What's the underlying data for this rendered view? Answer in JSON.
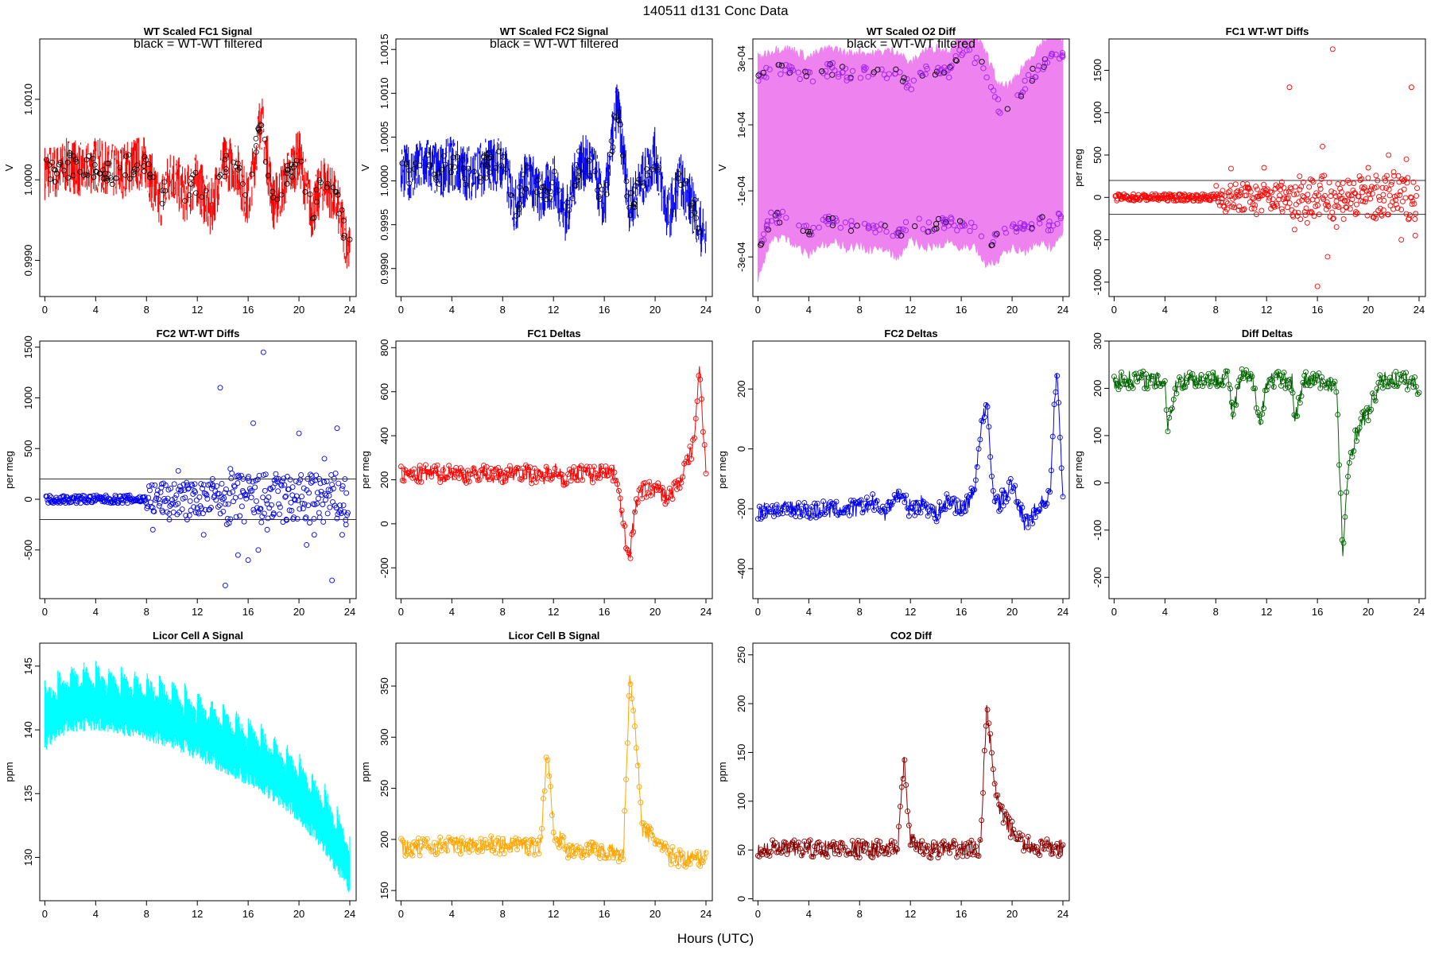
{
  "figure": {
    "title": "140511    d131    Conc Data",
    "xlabel": "Hours (UTC)"
  },
  "chart_data": [
    {
      "type": "line",
      "title": "WT Scaled FC1 Signal",
      "annotation": "black = WT-WT filtered",
      "ylabel": "V",
      "xlim": [
        -0.4,
        24.5
      ],
      "ylim": [
        0.99855,
        1.00175
      ],
      "xticks": [
        0,
        4,
        8,
        12,
        16,
        20,
        24
      ],
      "yticks": [
        0.999,
        1.0,
        1.001
      ],
      "ytick_labels": [
        "0.9990",
        "1.0000",
        "1.0010"
      ],
      "color": "#ff0000",
      "style": "band-points",
      "series": [
        {
          "name": "",
          "x": [
            0,
            1,
            2,
            3,
            4,
            5,
            6,
            7,
            8,
            9,
            10,
            11,
            12,
            13,
            14,
            15,
            16,
            17,
            18,
            19,
            20,
            21,
            22,
            23,
            24
          ],
          "y": [
            1.0001,
            1.0001,
            1.0002,
            1.0001,
            1.0002,
            1.0001,
            1.0001,
            1.0002,
            1.0002,
            0.9997,
            1.0001,
            0.9998,
            1.0,
            0.9996,
            1.0002,
            1.0002,
            0.9997,
            1.0008,
            0.9997,
            1.0,
            1.0003,
            0.9996,
            1.0,
            0.9997,
            0.9991
          ]
        }
      ]
    },
    {
      "type": "line",
      "title": "WT Scaled FC2 Signal",
      "annotation": "black = WT-WT filtered",
      "ylabel": "V",
      "xlim": [
        -0.4,
        24.5
      ],
      "ylim": [
        0.99868,
        1.00162
      ],
      "xticks": [
        0,
        4,
        8,
        12,
        16,
        20,
        24
      ],
      "yticks": [
        0.999,
        0.9995,
        1.0,
        1.0005,
        1.001,
        1.0015
      ],
      "ytick_labels": [
        "0.9990",
        "0.9995",
        "1.0000",
        "1.0005",
        "1.0010",
        "1.0015"
      ],
      "color": "#0000ee",
      "style": "band-points",
      "series": [
        {
          "name": "",
          "x": [
            0,
            1,
            2,
            3,
            4,
            5,
            6,
            7,
            8,
            9,
            10,
            11,
            12,
            13,
            14,
            15,
            16,
            17,
            18,
            19,
            20,
            21,
            22,
            23,
            24
          ],
          "y": [
            1.0001,
            1.0001,
            1.0002,
            1.0001,
            1.0002,
            1.0001,
            1.0001,
            1.0002,
            1.0002,
            0.9997,
            1.0001,
            0.9998,
            1.0,
            0.9996,
            1.0002,
            1.0002,
            0.9997,
            1.0009,
            0.9997,
            1.0,
            1.0003,
            0.9996,
            1.0,
            0.9997,
            0.9993
          ]
        }
      ]
    },
    {
      "type": "line",
      "title": "WT Scaled O2 Diff",
      "annotation": "black = WT-WT filtered",
      "ylabel": "V",
      "xlim": [
        -0.4,
        24.5
      ],
      "ylim": [
        -0.00042,
        0.00036
      ],
      "xticks": [
        0,
        4,
        8,
        12,
        16,
        20,
        24
      ],
      "yticks": [
        -0.0003,
        -0.0001,
        0.0001,
        0.0003
      ],
      "ytick_labels": [
        "-3e-04",
        "-1e-04",
        "1e-04",
        "3e-04"
      ],
      "color": "#ee82ee",
      "point_color": "#a020f0",
      "style": "wide-band",
      "series": [
        {
          "name": "",
          "x": [
            0,
            1,
            2,
            3,
            4,
            5,
            6,
            7,
            8,
            9,
            10,
            11,
            12,
            13,
            14,
            15,
            16,
            17,
            18,
            19,
            20,
            21,
            22,
            23,
            24
          ],
          "y": [
            0.00024,
            0.00026,
            0.00027,
            0.00026,
            0.00024,
            0.00026,
            0.00027,
            0.00025,
            0.00026,
            0.00025,
            0.00026,
            0.00026,
            0.00022,
            0.00026,
            0.00027,
            0.00026,
            0.00033,
            0.00031,
            0.00025,
            0.00015,
            0.00016,
            0.00022,
            0.00027,
            0.00031,
            0.0003
          ]
        },
        {
          "name": "",
          "x": [
            0,
            1,
            2,
            3,
            4,
            5,
            6,
            7,
            8,
            9,
            10,
            11,
            12,
            13,
            14,
            15,
            16,
            17,
            18,
            19,
            20,
            21,
            22,
            23,
            24
          ],
          "y": [
            -0.0003,
            -0.00018,
            -0.00018,
            -0.0002,
            -0.00023,
            -0.0002,
            -0.00019,
            -0.00021,
            -0.0002,
            -0.00022,
            -0.00021,
            -0.00024,
            -0.00018,
            -0.00021,
            -0.0002,
            -0.00019,
            -0.00021,
            -0.0002,
            -0.00026,
            -0.00024,
            -0.00021,
            -0.00022,
            -0.00019,
            -0.00021,
            -0.00016
          ]
        }
      ]
    },
    {
      "type": "scatter",
      "title": "FC1 WT-WT Diffs",
      "ylabel": "per meg",
      "xlim": [
        -0.4,
        24.5
      ],
      "ylim": [
        -1170,
        1870
      ],
      "xticks": [
        0,
        4,
        8,
        12,
        16,
        20,
        24
      ],
      "yticks": [
        -1000,
        -500,
        0,
        500,
        1000,
        1500
      ],
      "ytick_labels": [
        "-1000",
        "-500",
        "0",
        "500",
        "1000",
        "1500"
      ],
      "hlines": [
        200,
        -200
      ],
      "color": "#ff0000",
      "series": [
        {
          "name": "",
          "x": [
            0.5,
            1.5,
            2.5,
            3.5,
            4.5,
            5.5,
            6.5,
            7.5,
            8.5,
            9.2,
            9.8,
            10.5,
            11.2,
            11.8,
            12.5,
            13.2,
            13.8,
            14.2,
            14.6,
            15.2,
            15.6,
            16.0,
            16.4,
            16.8,
            17.2,
            17.5,
            18.0,
            18.4,
            19.0,
            19.5,
            20.0,
            20.6,
            21.2,
            21.6,
            22.0,
            22.6,
            23.0,
            23.4,
            23.7
          ],
          "y": [
            10,
            -30,
            20,
            -10,
            15,
            -20,
            10,
            -15,
            30,
            340,
            -150,
            120,
            -200,
            350,
            -100,
            180,
            1300,
            -380,
            250,
            -300,
            200,
            -1050,
            600,
            -700,
            1750,
            -350,
            -150,
            200,
            -200,
            120,
            350,
            -250,
            -150,
            500,
            300,
            -500,
            450,
            1300,
            -450
          ]
        }
      ]
    },
    {
      "type": "scatter",
      "title": "FC2 WT-WT Diffs",
      "ylabel": "per meg",
      "xlim": [
        -0.4,
        24.5
      ],
      "ylim": [
        -980,
        1560
      ],
      "xticks": [
        0,
        4,
        8,
        12,
        16,
        20,
        24
      ],
      "yticks": [
        -500,
        0,
        500,
        1000,
        1500
      ],
      "ytick_labels": [
        "-500",
        "0",
        "500",
        "1000",
        "1500"
      ],
      "hlines": [
        200,
        -200
      ],
      "color": "#0000ee",
      "series": [
        {
          "name": "",
          "x": [
            0.5,
            1.5,
            2.5,
            3.5,
            4.5,
            5.5,
            6.5,
            7.5,
            8.5,
            9.2,
            9.8,
            10.5,
            11.2,
            11.8,
            12.5,
            13.2,
            13.8,
            14.2,
            14.6,
            15.2,
            15.6,
            16.0,
            16.4,
            16.8,
            17.2,
            17.5,
            18.0,
            18.4,
            19.0,
            19.5,
            20.0,
            20.6,
            21.2,
            21.6,
            22.0,
            22.6,
            23.0,
            23.4,
            23.7
          ],
          "y": [
            20,
            -20,
            30,
            -10,
            10,
            -30,
            10,
            -20,
            -300,
            150,
            -200,
            280,
            -200,
            150,
            -350,
            200,
            1100,
            -850,
            300,
            -550,
            200,
            -600,
            750,
            -500,
            1450,
            -300,
            -150,
            200,
            -200,
            120,
            650,
            -450,
            -350,
            200,
            400,
            -800,
            700,
            -350,
            -250
          ]
        }
      ]
    },
    {
      "type": "line",
      "title": "FC1 Deltas",
      "ylabel": "per meg",
      "xlim": [
        -0.4,
        24.5
      ],
      "ylim": [
        -340,
        830
      ],
      "xticks": [
        0,
        4,
        8,
        12,
        16,
        20,
        24
      ],
      "yticks": [
        -200,
        0,
        200,
        400,
        600,
        800
      ],
      "ytick_labels": [
        "-200",
        "0",
        "200",
        "400",
        "600",
        "800"
      ],
      "color": "#ff0000",
      "style": "line-points",
      "series": [
        {
          "name": "",
          "x": [
            0,
            1,
            2,
            3,
            4,
            5,
            6,
            7,
            8,
            9,
            10,
            11,
            12,
            13,
            14,
            15,
            16,
            17,
            17.5,
            18,
            18.5,
            19,
            20,
            21,
            22,
            23,
            23.5,
            24
          ],
          "y": [
            225,
            220,
            230,
            225,
            235,
            220,
            230,
            225,
            215,
            240,
            230,
            210,
            250,
            200,
            240,
            220,
            250,
            220,
            -20,
            -150,
            100,
            150,
            160,
            120,
            200,
            350,
            700,
            250
          ]
        }
      ]
    },
    {
      "type": "line",
      "title": "FC2 Deltas",
      "ylabel": "per meg",
      "xlim": [
        -0.4,
        24.5
      ],
      "ylim": [
        -500,
        360
      ],
      "xticks": [
        0,
        4,
        8,
        12,
        16,
        20,
        24
      ],
      "yticks": [
        -400,
        -200,
        0,
        200
      ],
      "ytick_labels": [
        "-400",
        "-200",
        "0",
        "200"
      ],
      "color": "#0000ee",
      "style": "line-points",
      "series": [
        {
          "name": "",
          "x": [
            0,
            1,
            2,
            3,
            4,
            5,
            6,
            7,
            8,
            9,
            10,
            11,
            12,
            13,
            14,
            15,
            16,
            17,
            17.5,
            18,
            18.5,
            19,
            20,
            21,
            22,
            23,
            23.5,
            24
          ],
          "y": [
            -210,
            -200,
            -205,
            -195,
            -210,
            -200,
            -205,
            -200,
            -200,
            -180,
            -210,
            -150,
            -200,
            -180,
            -220,
            -170,
            -200,
            -150,
            60,
            150,
            -150,
            -180,
            -120,
            -250,
            -200,
            -150,
            280,
            -150
          ]
        }
      ]
    },
    {
      "type": "line",
      "title": "Diff Deltas",
      "ylabel": "per meg",
      "xlim": [
        -0.4,
        24.5
      ],
      "ylim": [
        -245,
        300
      ],
      "xticks": [
        0,
        4,
        8,
        12,
        16,
        20,
        24
      ],
      "yticks": [
        -200,
        -100,
        0,
        100,
        200,
        300
      ],
      "ytick_labels": [
        "-200",
        "-100",
        "0",
        "100",
        "200",
        "300"
      ],
      "color": "#006400",
      "style": "line-points",
      "series": [
        {
          "name": "",
          "x": [
            0,
            1,
            2,
            3,
            4,
            4.2,
            5,
            6,
            7,
            8,
            9,
            9.3,
            10,
            11,
            11.5,
            12,
            13,
            14,
            14.2,
            15,
            16,
            17,
            17.5,
            18,
            18.5,
            19,
            19.5,
            20,
            21,
            22,
            23,
            24
          ],
          "y": [
            215,
            218,
            220,
            215,
            218,
            120,
            215,
            220,
            218,
            222,
            225,
            140,
            225,
            215,
            120,
            215,
            218,
            215,
            135,
            218,
            215,
            212,
            200,
            -150,
            50,
            100,
            130,
            150,
            215,
            220,
            215,
            205
          ]
        }
      ]
    },
    {
      "type": "area",
      "title": "Licor Cell A Signal",
      "ylabel": "ppm",
      "xlim": [
        -0.4,
        24.5
      ],
      "ylim": [
        126.6,
        146.8
      ],
      "xticks": [
        0,
        4,
        8,
        12,
        16,
        20,
        24
      ],
      "yticks": [
        130,
        135,
        140,
        145
      ],
      "ytick_labels": [
        "130",
        "135",
        "140",
        "145"
      ],
      "color": "#00ffff",
      "style": "sawtooth",
      "series": [
        {
          "name": "",
          "x": [
            0,
            2,
            4,
            6,
            8,
            10,
            12,
            14,
            16,
            18,
            20,
            22,
            24
          ],
          "y": [
            141.0,
            142.5,
            142.6,
            142.2,
            141.8,
            141.2,
            140.3,
            139.3,
            138.3,
            137.0,
            135.4,
            133.0,
            129.5
          ]
        }
      ]
    },
    {
      "type": "line",
      "title": "Licor Cell B Signal",
      "ylabel": "ppm",
      "xlim": [
        -0.4,
        24.5
      ],
      "ylim": [
        140,
        392
      ],
      "xticks": [
        0,
        4,
        8,
        12,
        16,
        20,
        24
      ],
      "yticks": [
        150,
        200,
        250,
        300,
        350
      ],
      "ytick_labels": [
        "150",
        "200",
        "250",
        "300",
        "350"
      ],
      "color": "#ffa500",
      "style": "line-points",
      "series": [
        {
          "name": "",
          "x": [
            0,
            1,
            2,
            3,
            4,
            5,
            6,
            7,
            8,
            9,
            10,
            11,
            11.5,
            12,
            13,
            14,
            15,
            16,
            17,
            17.5,
            18,
            18.5,
            19,
            20,
            21,
            22,
            23,
            24
          ],
          "y": [
            193,
            192,
            193,
            194,
            195,
            193,
            196,
            195,
            194,
            196,
            192,
            195,
            290,
            210,
            190,
            191,
            190,
            189,
            186,
            185,
            360,
            300,
            210,
            200,
            185,
            182,
            181,
            183
          ]
        }
      ]
    },
    {
      "type": "line",
      "title": "CO2 Diff",
      "ylabel": "ppm",
      "xlim": [
        -0.4,
        24.5
      ],
      "ylim": [
        -2,
        262
      ],
      "xticks": [
        0,
        4,
        8,
        12,
        16,
        20,
        24
      ],
      "yticks": [
        0,
        50,
        100,
        150,
        200,
        250
      ],
      "ytick_labels": [
        "0",
        "50",
        "100",
        "150",
        "200",
        "250"
      ],
      "color": "#8b0000",
      "style": "line-points",
      "series": [
        {
          "name": "",
          "x": [
            0,
            1,
            2,
            3,
            4,
            5,
            6,
            7,
            8,
            9,
            10,
            11,
            11.5,
            12,
            13,
            14,
            15,
            16,
            17,
            17.5,
            18,
            18.5,
            19,
            20,
            21,
            22,
            23,
            24
          ],
          "y": [
            51,
            51,
            51,
            51,
            51,
            51,
            52,
            52,
            51,
            51,
            51,
            52,
            140,
            60,
            51,
            51,
            51,
            51,
            51,
            52,
            200,
            130,
            90,
            70,
            55,
            53,
            52,
            52
          ]
        }
      ]
    }
  ]
}
